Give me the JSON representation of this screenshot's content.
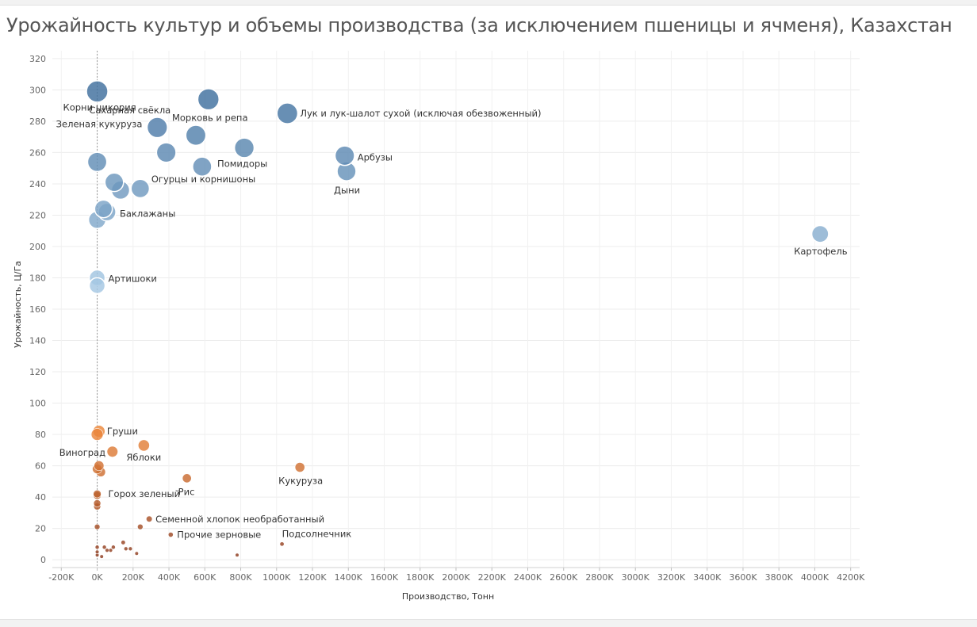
{
  "window": {
    "title": "Урожайность культур и объемы производства (за исключением пшеницы и ячменя), Казахстан"
  },
  "chart_data": {
    "type": "scatter",
    "title": "Урожайность культур и объемы производства (за исключением пшеницы и ячменя), Казахстан",
    "xlabel": "Производство, Тонн",
    "ylabel": "Урожайность, Ц/Га",
    "xlim": [
      -250000,
      4250000
    ],
    "ylim": [
      -5,
      325
    ],
    "xticks": [
      -200000,
      0,
      200000,
      400000,
      600000,
      800000,
      1000000,
      1200000,
      1400000,
      1600000,
      1800000,
      2000000,
      2200000,
      2400000,
      2600000,
      2800000,
      3000000,
      3200000,
      3400000,
      3600000,
      3800000,
      4000000,
      4200000
    ],
    "xtick_labels": [
      "-200K",
      "0K",
      "200K",
      "400K",
      "600K",
      "800K",
      "1000K",
      "1200K",
      "1400K",
      "1600K",
      "1800K",
      "2000K",
      "2200K",
      "2400K",
      "2600K",
      "2800K",
      "3000K",
      "3200K",
      "3400K",
      "3600K",
      "3800K",
      "4000K",
      "4200K"
    ],
    "yticks": [
      0,
      20,
      40,
      60,
      80,
      100,
      120,
      140,
      160,
      180,
      200,
      220,
      240,
      260,
      280,
      300,
      320
    ],
    "ytick_labels": [
      "0",
      "20",
      "40",
      "60",
      "80",
      "100",
      "120",
      "140",
      "160",
      "180",
      "200",
      "220",
      "240",
      "260",
      "280",
      "300",
      "320"
    ],
    "grid": true,
    "reference_line_x": 0,
    "color_scale": {
      "low": "#8b3a1f",
      "mid_low": "#f08a3c",
      "mid_high": "#a9cbe6",
      "high": "#3f6f9e"
    },
    "points": [
      {
        "x": 0,
        "y": 299,
        "label": "Корни цикория"
      },
      {
        "x": 620000,
        "y": 294,
        "label": ""
      },
      {
        "x": 1060000,
        "y": 285,
        "label": "Лук и лук-шалот сухой (исключая обезвоженный)"
      },
      {
        "x": 335000,
        "y": 276,
        "label": "Сахарная свёкла"
      },
      {
        "x": 550000,
        "y": 271,
        "label": "Морковь и репа"
      },
      {
        "x": 820000,
        "y": 263,
        "label": "Помидоры"
      },
      {
        "x": 385000,
        "y": 260,
        "label": "Зеленая кукуруза"
      },
      {
        "x": 1380000,
        "y": 258,
        "label": "Арбузы"
      },
      {
        "x": 0,
        "y": 254,
        "label": ""
      },
      {
        "x": 585000,
        "y": 251,
        "label": ""
      },
      {
        "x": 1390000,
        "y": 248,
        "label": "Дыни"
      },
      {
        "x": 95000,
        "y": 241,
        "label": ""
      },
      {
        "x": 240000,
        "y": 237,
        "label": "Огурцы и корнишоны"
      },
      {
        "x": 130000,
        "y": 236,
        "label": ""
      },
      {
        "x": 35000,
        "y": 224,
        "label": ""
      },
      {
        "x": 55000,
        "y": 222,
        "label": "Баклажаны"
      },
      {
        "x": 0,
        "y": 217,
        "label": ""
      },
      {
        "x": 4030000,
        "y": 208,
        "label": "Картофель"
      },
      {
        "x": 0,
        "y": 180,
        "label": "Артишоки"
      },
      {
        "x": 0,
        "y": 175,
        "label": ""
      },
      {
        "x": 10000,
        "y": 82,
        "label": "Груши"
      },
      {
        "x": 0,
        "y": 80,
        "label": ""
      },
      {
        "x": 260000,
        "y": 73,
        "label": "Яблоки"
      },
      {
        "x": 85000,
        "y": 69,
        "label": "Виноград"
      },
      {
        "x": 1130000,
        "y": 59,
        "label": "Кукуруза"
      },
      {
        "x": 10000,
        "y": 60,
        "label": ""
      },
      {
        "x": 0,
        "y": 58,
        "label": ""
      },
      {
        "x": 20000,
        "y": 56,
        "label": ""
      },
      {
        "x": 500000,
        "y": 52,
        "label": "Рис"
      },
      {
        "x": 0,
        "y": 42,
        "label": "Горох зеленый"
      },
      {
        "x": 0,
        "y": 41,
        "label": ""
      },
      {
        "x": 0,
        "y": 36,
        "label": ""
      },
      {
        "x": 0,
        "y": 34,
        "label": ""
      },
      {
        "x": 290000,
        "y": 26,
        "label": "Семенной хлопок необработанный"
      },
      {
        "x": 0,
        "y": 21,
        "label": ""
      },
      {
        "x": 240000,
        "y": 21,
        "label": ""
      },
      {
        "x": 410000,
        "y": 16,
        "label": "Прочие зерновые"
      },
      {
        "x": 1030000,
        "y": 10,
        "label": "Подсолнечник"
      },
      {
        "x": 145000,
        "y": 11,
        "label": ""
      },
      {
        "x": 40000,
        "y": 8,
        "label": ""
      },
      {
        "x": 0,
        "y": 8,
        "label": ""
      },
      {
        "x": 90000,
        "y": 8,
        "label": ""
      },
      {
        "x": 160000,
        "y": 7,
        "label": ""
      },
      {
        "x": 185000,
        "y": 7,
        "label": ""
      },
      {
        "x": 75000,
        "y": 6,
        "label": ""
      },
      {
        "x": 55000,
        "y": 6,
        "label": ""
      },
      {
        "x": 0,
        "y": 5,
        "label": ""
      },
      {
        "x": 220000,
        "y": 4,
        "label": ""
      },
      {
        "x": 780000,
        "y": 3,
        "label": ""
      },
      {
        "x": 25000,
        "y": 2,
        "label": ""
      },
      {
        "x": 0,
        "y": 3,
        "label": ""
      }
    ]
  }
}
